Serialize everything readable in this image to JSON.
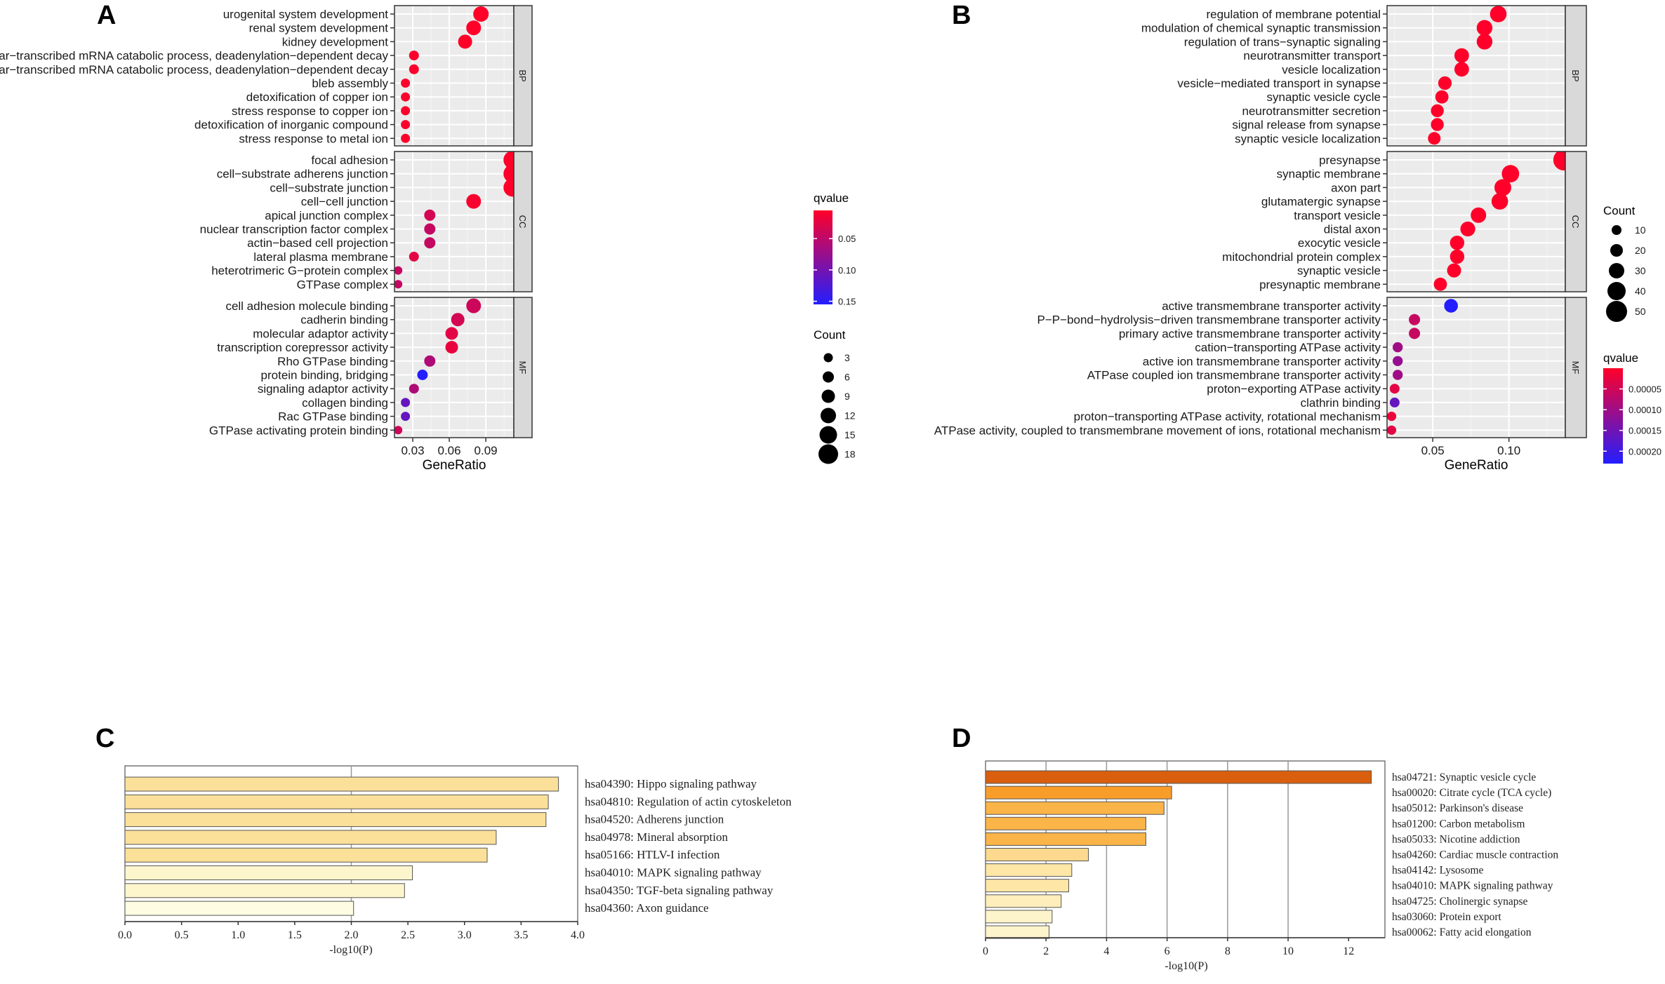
{
  "chart_data": [
    {
      "panel": "A",
      "type": "scatter",
      "subtype": "dot-plot",
      "xlabel": "GeneRatio",
      "xlim": [
        0.015,
        0.113
      ],
      "xticks": [
        "0.03",
        "0.06",
        "0.09"
      ],
      "xtick_values": [
        0.03,
        0.06,
        0.09
      ],
      "qvalue_title": "qvalue",
      "qvalue_ticks": [
        "0.05",
        "0.10",
        "0.15"
      ],
      "qvalue_tick_values": [
        0.05,
        0.1,
        0.15
      ],
      "qvalue_range": [
        0.005,
        0.155
      ],
      "count_title": "Count",
      "count_legend": [
        3,
        6,
        9,
        12,
        15,
        18
      ],
      "count_legend_labels": [
        "3",
        "6",
        "9",
        "12",
        "15",
        "18"
      ],
      "count_range": [
        2,
        18
      ],
      "facets": [
        {
          "label": "BP",
          "terms": [
            {
              "term": "urogenital system development",
              "x": 0.086,
              "count": 12,
              "q": 0.005
            },
            {
              "term": "renal system development",
              "x": 0.08,
              "count": 11,
              "q": 0.005
            },
            {
              "term": "kidney development",
              "x": 0.073,
              "count": 10,
              "q": 0.005
            },
            {
              "term": "positive regulation of nuclear−transcribed mRNA catabolic process, deadenylation−dependent decay",
              "x": 0.031,
              "count": 4,
              "q": 0.008
            },
            {
              "term": "regulation of nuclear−transcribed mRNA catabolic process, deadenylation−dependent decay",
              "x": 0.031,
              "count": 4,
              "q": 0.008
            },
            {
              "term": "bleb assembly",
              "x": 0.024,
              "count": 3,
              "q": 0.008
            },
            {
              "term": "detoxification of copper ion",
              "x": 0.024,
              "count": 3,
              "q": 0.008
            },
            {
              "term": "stress response to copper ion",
              "x": 0.024,
              "count": 3,
              "q": 0.008
            },
            {
              "term": "detoxification of inorganic compound",
              "x": 0.024,
              "count": 3,
              "q": 0.008
            },
            {
              "term": "stress response to metal ion",
              "x": 0.024,
              "count": 3,
              "q": 0.008
            }
          ]
        },
        {
          "label": "CC",
          "terms": [
            {
              "term": "focal adhesion",
              "x": 0.112,
              "count": 16,
              "q": 0.006
            },
            {
              "term": "cell−substrate adherens junction",
              "x": 0.112,
              "count": 16,
              "q": 0.006
            },
            {
              "term": "cell−substrate junction",
              "x": 0.112,
              "count": 16,
              "q": 0.006
            },
            {
              "term": "cell−cell junction",
              "x": 0.08,
              "count": 11,
              "q": 0.01
            },
            {
              "term": "apical junction complex",
              "x": 0.044,
              "count": 6,
              "q": 0.035
            },
            {
              "term": "nuclear transcription factor complex",
              "x": 0.044,
              "count": 6,
              "q": 0.045
            },
            {
              "term": "actin−based cell projection",
              "x": 0.044,
              "count": 6,
              "q": 0.045
            },
            {
              "term": "lateral plasma membrane",
              "x": 0.031,
              "count": 4,
              "q": 0.025
            },
            {
              "term": "heterotrimeric G−protein complex",
              "x": 0.018,
              "count": 2,
              "q": 0.045
            },
            {
              "term": "GTPase complex",
              "x": 0.018,
              "count": 2,
              "q": 0.045
            }
          ]
        },
        {
          "label": "MF",
          "terms": [
            {
              "term": "cell adhesion molecule binding",
              "x": 0.08,
              "count": 11,
              "q": 0.04
            },
            {
              "term": "cadherin binding",
              "x": 0.067,
              "count": 9,
              "q": 0.035
            },
            {
              "term": "molecular adaptor activity",
              "x": 0.062,
              "count": 8,
              "q": 0.025
            },
            {
              "term": "transcription corepressor activity",
              "x": 0.062,
              "count": 8,
              "q": 0.02
            },
            {
              "term": "Rho GTPase binding",
              "x": 0.044,
              "count": 6,
              "q": 0.06
            },
            {
              "term": "protein binding, bridging",
              "x": 0.038,
              "count": 5,
              "q": 0.155
            },
            {
              "term": "signaling adaptor activity",
              "x": 0.031,
              "count": 4,
              "q": 0.06
            },
            {
              "term": "collagen binding",
              "x": 0.024,
              "count": 3,
              "q": 0.11
            },
            {
              "term": "Rac GTPase binding",
              "x": 0.024,
              "count": 3,
              "q": 0.11
            },
            {
              "term": "GTPase activating protein binding",
              "x": 0.018,
              "count": 2,
              "q": 0.04
            }
          ]
        }
      ]
    },
    {
      "panel": "B",
      "type": "scatter",
      "subtype": "dot-plot",
      "xlabel": "GeneRatio",
      "xlim": [
        0.02,
        0.137
      ],
      "xticks": [
        "0.05",
        "0.10"
      ],
      "xtick_values": [
        0.05,
        0.1
      ],
      "qvalue_title": "qvalue",
      "qvalue_ticks": [
        "0.00005",
        "0.00010",
        "0.00015",
        "0.00020"
      ],
      "qvalue_tick_values": [
        5e-05,
        0.0001,
        0.00015,
        0.0002
      ],
      "qvalue_range": [
        1e-07,
        0.00023
      ],
      "count_title": "Count",
      "count_legend": [
        10,
        20,
        30,
        40,
        50
      ],
      "count_legend_labels": [
        "10",
        "20",
        "30",
        "40",
        "50"
      ],
      "count_range": [
        5,
        50
      ],
      "facets": [
        {
          "label": "BP",
          "terms": [
            {
              "term": "regulation of membrane potential",
              "x": 0.093,
              "count": 34,
              "q": 1e-06
            },
            {
              "term": "modulation of chemical synaptic transmission",
              "x": 0.084,
              "count": 31,
              "q": 1e-06
            },
            {
              "term": "regulation of trans−synaptic signaling",
              "x": 0.084,
              "count": 31,
              "q": 1e-06
            },
            {
              "term": "neurotransmitter transport",
              "x": 0.069,
              "count": 27,
              "q": 1e-06
            },
            {
              "term": "vesicle localization",
              "x": 0.069,
              "count": 27,
              "q": 1e-06
            },
            {
              "term": "vesicle−mediated transport in synapse",
              "x": 0.058,
              "count": 23,
              "q": 1e-06
            },
            {
              "term": "synaptic vesicle cycle",
              "x": 0.056,
              "count": 22,
              "q": 1e-06
            },
            {
              "term": "neurotransmitter secretion",
              "x": 0.053,
              "count": 21,
              "q": 1e-06
            },
            {
              "term": "signal release from synapse",
              "x": 0.053,
              "count": 21,
              "q": 1e-06
            },
            {
              "term": "synaptic vesicle localization",
              "x": 0.051,
              "count": 20,
              "q": 1e-06
            }
          ]
        },
        {
          "label": "CC",
          "terms": [
            {
              "term": "presynapse",
              "x": 0.136,
              "count": 50,
              "q": 1e-06
            },
            {
              "term": "synaptic membrane",
              "x": 0.101,
              "count": 37,
              "q": 1e-06
            },
            {
              "term": "axon part",
              "x": 0.096,
              "count": 35,
              "q": 1e-06
            },
            {
              "term": "glutamatergic synapse",
              "x": 0.094,
              "count": 34,
              "q": 1e-06
            },
            {
              "term": "transport vesicle",
              "x": 0.08,
              "count": 30,
              "q": 1e-06
            },
            {
              "term": "distal axon",
              "x": 0.073,
              "count": 28,
              "q": 1e-06
            },
            {
              "term": "exocytic vesicle",
              "x": 0.066,
              "count": 26,
              "q": 1e-06
            },
            {
              "term": "mitochondrial protein complex",
              "x": 0.066,
              "count": 26,
              "q": 1e-06
            },
            {
              "term": "synaptic vesicle",
              "x": 0.064,
              "count": 25,
              "q": 1e-06
            },
            {
              "term": "presynaptic membrane",
              "x": 0.055,
              "count": 22,
              "q": 1e-06
            }
          ]
        },
        {
          "label": "MF",
          "terms": [
            {
              "term": "active transmembrane transporter activity",
              "x": 0.062,
              "count": 24,
              "q": 0.00023
            },
            {
              "term": "P−P−bond−hydrolysis−driven transmembrane transporter activity",
              "x": 0.038,
              "count": 15,
              "q": 6e-05
            },
            {
              "term": "primary active transmembrane transporter activity",
              "x": 0.038,
              "count": 15,
              "q": 6e-05
            },
            {
              "term": "cation−transporting ATPase activity",
              "x": 0.027,
              "count": 11,
              "q": 0.0001
            },
            {
              "term": "active ion transmembrane transporter activity",
              "x": 0.027,
              "count": 11,
              "q": 0.00011
            },
            {
              "term": "ATPase coupled ion transmembrane transporter activity",
              "x": 0.027,
              "count": 11,
              "q": 0.0001
            },
            {
              "term": "proton−exporting ATPase activity",
              "x": 0.025,
              "count": 10,
              "q": 3e-05
            },
            {
              "term": "clathrin binding",
              "x": 0.025,
              "count": 10,
              "q": 0.00016
            },
            {
              "term": "proton−transporting ATPase activity, rotational mechanism",
              "x": 0.023,
              "count": 8,
              "q": 2e-05
            },
            {
              "term": "ATPase activity, coupled to transmembrane movement of ions, rotational mechanism",
              "x": 0.023,
              "count": 8,
              "q": 3e-05
            }
          ]
        }
      ]
    },
    {
      "panel": "C",
      "type": "bar",
      "orientation": "horizontal",
      "xlabel": "-log10(P)",
      "xlim": [
        0,
        4.0
      ],
      "xticks": [
        "0.0",
        "0.5",
        "1.0",
        "1.5",
        "2.0",
        "2.5",
        "3.0",
        "3.5",
        "4.0"
      ],
      "xtick_values": [
        0,
        0.5,
        1.0,
        1.5,
        2.0,
        2.5,
        3.0,
        3.5,
        4.0
      ],
      "vgrid": [
        2.0
      ],
      "categories": [
        "hsa04390: Hippo signaling pathway",
        "hsa04810: Regulation of actin cytoskeleton",
        "hsa04520: Adherens junction",
        "hsa04978: Mineral absorption",
        "hsa05166: HTLV-I infection",
        "hsa04010: MAPK signaling pathway",
        "hsa04350: TGF-beta signaling pathway",
        "hsa04360: Axon guidance"
      ],
      "values": [
        3.83,
        3.74,
        3.72,
        3.28,
        3.2,
        2.54,
        2.47,
        2.02
      ],
      "colors": [
        "#fbe099",
        "#fbe099",
        "#fbe099",
        "#fbe099",
        "#fbe099",
        "#fdf6cc",
        "#fdf6cc",
        "#fefce2"
      ]
    },
    {
      "panel": "D",
      "type": "bar",
      "orientation": "horizontal",
      "xlabel": "-log10(P)",
      "xlim": [
        0,
        13.2
      ],
      "xticks": [
        "0",
        "2",
        "4",
        "6",
        "8",
        "10",
        "12"
      ],
      "xtick_values": [
        0,
        2,
        4,
        6,
        8,
        10,
        12
      ],
      "vgrid": [
        2,
        4,
        6,
        8,
        10
      ],
      "categories": [
        "hsa04721: Synaptic vesicle cycle",
        "hsa00020: Citrate cycle (TCA cycle)",
        "hsa05012: Parkinson's disease",
        "hsa01200: Carbon metabolism",
        "hsa05033: Nicotine addiction",
        "hsa04260: Cardiac muscle contraction",
        "hsa04142: Lysosome",
        "hsa04010: MAPK signaling pathway",
        "hsa04725: Cholinergic synapse",
        "hsa03060: Protein export",
        "hsa00062: Fatty acid elongation"
      ],
      "values": [
        12.75,
        6.15,
        5.9,
        5.3,
        5.3,
        3.4,
        2.85,
        2.75,
        2.5,
        2.2,
        2.1
      ],
      "colors": [
        "#d95f0e",
        "#f99d2a",
        "#fbb448",
        "#fbb448",
        "#fbb448",
        "#fcd98e",
        "#fde6a6",
        "#fde6a6",
        "#feeebb",
        "#fef4cc",
        "#fef4cc"
      ]
    }
  ]
}
